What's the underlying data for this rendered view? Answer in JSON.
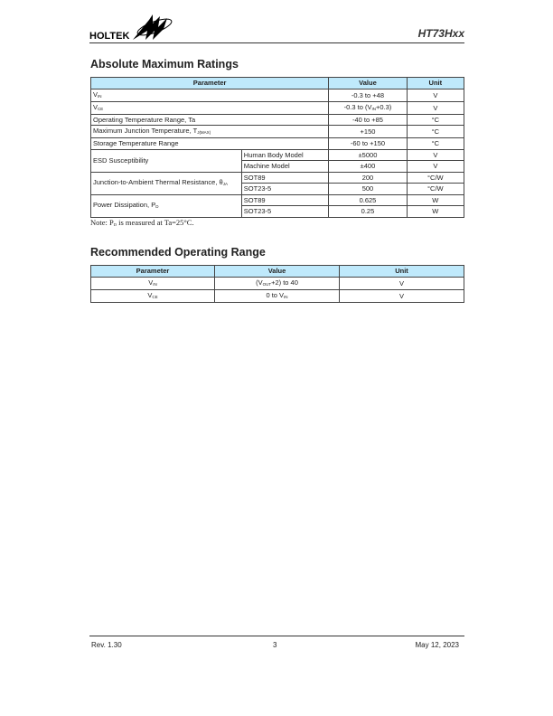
{
  "header": {
    "logo_text": "HOLTEK",
    "doc_title": "HT73Hxx"
  },
  "amr": {
    "title": "Absolute Maximum Ratings",
    "columns": [
      "Parameter",
      "Value",
      "Unit"
    ],
    "rows": [
      {
        "param": "V",
        "param_sub": "IN",
        "value": "-0.3 to +48",
        "unit": "V"
      },
      {
        "param": "V",
        "param_sub": "CE",
        "value_pre": "-0.3 to (V",
        "value_sub": "IN",
        "value_post": "+0.3)",
        "unit": "V"
      },
      {
        "param": "Operating Temperature Range, Ta",
        "value": "-40 to +85",
        "unit": "°C"
      },
      {
        "param": "Maximum Junction Temperature, T",
        "param_sub": "J(MAX)",
        "value": "+150",
        "unit": "°C"
      },
      {
        "param": "Storage Temperature Range",
        "value": "-60 to +150",
        "unit": "°C"
      }
    ],
    "esd": {
      "param": "ESD Susceptibility",
      "rows": [
        {
          "cond": "Human Body Model",
          "value": "±5000",
          "unit": "V"
        },
        {
          "cond": "Machine Model",
          "value": "±400",
          "unit": "V"
        }
      ]
    },
    "theta": {
      "param": "Junction-to-Ambient Thermal Resistance, θ",
      "param_sub": "JA",
      "rows": [
        {
          "cond": "SOT89",
          "value": "200",
          "unit": "°C/W"
        },
        {
          "cond": "SOT23-5",
          "value": "500",
          "unit": "°C/W"
        }
      ]
    },
    "pd": {
      "param": "Power Dissipation, P",
      "param_sub": "D",
      "rows": [
        {
          "cond": "SOT89",
          "value": "0.625",
          "unit": "W"
        },
        {
          "cond": "SOT23-5",
          "value": "0.25",
          "unit": "W"
        }
      ]
    },
    "note_pre": "Note: P",
    "note_sub": "D",
    "note_post": " is measured at Ta=25°C."
  },
  "ror": {
    "title": "Recommended Operating Range",
    "columns": [
      "Parameter",
      "Value",
      "Unit"
    ],
    "rows": [
      {
        "param": "V",
        "param_sub": "IN",
        "value_pre": "(V",
        "value_sub": "OUT",
        "value_post": "+2) to 40",
        "unit": "V"
      },
      {
        "param": "V",
        "param_sub": "CE",
        "value_pre": "0 to V",
        "value_sub": "IN",
        "value_post": "",
        "unit": "V"
      }
    ]
  },
  "footer": {
    "rev": "Rev. 1.30",
    "page": "3",
    "date": "May 12, 2023"
  }
}
